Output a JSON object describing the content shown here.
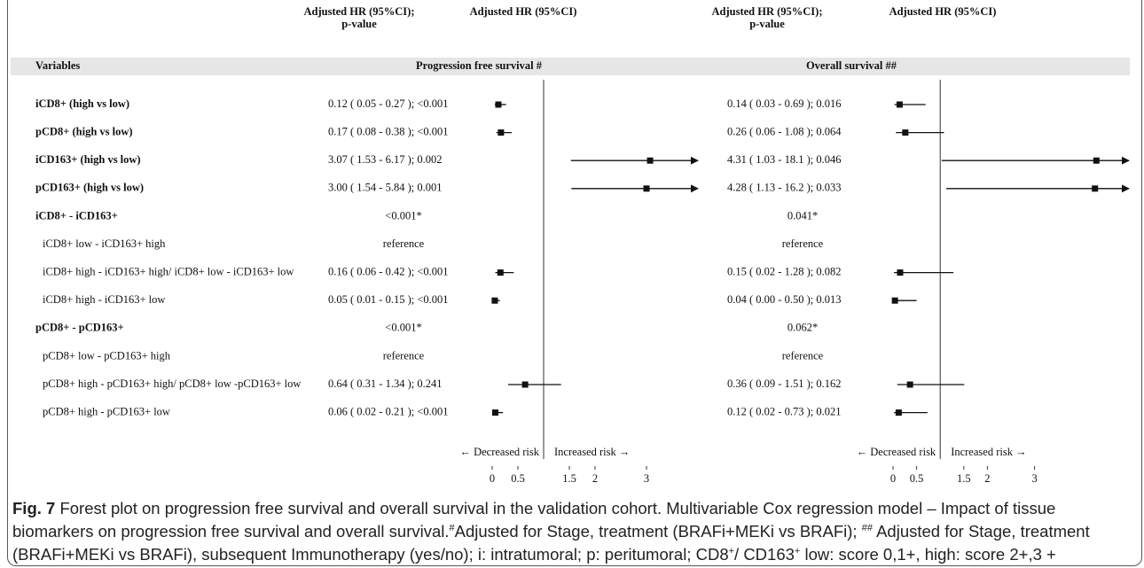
{
  "figure": {
    "variables_header": "Variables",
    "variables": [
      {
        "label": "iCD8+ (high vs low)",
        "bold": true
      },
      {
        "label": "pCD8+ (high vs low)",
        "bold": true
      },
      {
        "label": "iCD163+ (high vs low)",
        "bold": true
      },
      {
        "label": "pCD163+ (high vs low)",
        "bold": true
      },
      {
        "label": "iCD8+ - iCD163+",
        "bold": true
      },
      {
        "label": "iCD8+ low - iCD163+ high",
        "bold": false
      },
      {
        "label": "iCD8+ high - iCD163+ high/ iCD8+ low - iCD163+ low",
        "bold": false
      },
      {
        "label": "iCD8+ high - iCD163+ low",
        "bold": false
      },
      {
        "label": "pCD8+ - pCD163+",
        "bold": true
      },
      {
        "label": "pCD8+ low - pCD163+ high",
        "bold": false
      },
      {
        "label": "pCD8+ high - pCD163+ high/ pCD8+ low -pCD163+ low",
        "bold": false
      },
      {
        "label": "pCD8+ high - pCD163+ low",
        "bold": false
      }
    ],
    "panels": [
      {
        "title": "Progression free survival #",
        "head_ci_p": [
          "Adjusted HR (95%CI);",
          "p-value"
        ],
        "head_ci": "Adjusted HR (95%CI)",
        "decreased": "← Decreased risk",
        "increased": "Increased risk →",
        "xlim": [
          0,
          4
        ],
        "xticks": [
          0,
          0.5,
          1.5,
          2,
          3
        ],
        "reference_line": 1,
        "rows": [
          {
            "text": "0.12 ( 0.05 - 0.27 ); <0.001",
            "hr": 0.12,
            "ci": [
              0.05,
              0.27
            ]
          },
          {
            "text": "0.17 ( 0.08 - 0.38 ); <0.001",
            "hr": 0.17,
            "ci": [
              0.08,
              0.38
            ]
          },
          {
            "text": "3.07 ( 1.53 - 6.17 ); 0.002",
            "hr": 3.07,
            "ci": [
              1.53,
              6.17
            ]
          },
          {
            "text": "3.00 ( 1.54 - 5.84 ); 0.001",
            "hr": 3.0,
            "ci": [
              1.54,
              5.84
            ]
          },
          {
            "text": "<0.001*"
          },
          {
            "text": "reference"
          },
          {
            "text": "0.16 ( 0.06 - 0.42 ); <0.001",
            "hr": 0.16,
            "ci": [
              0.06,
              0.42
            ]
          },
          {
            "text": "0.05 ( 0.01 - 0.15 ); <0.001",
            "hr": 0.05,
            "ci": [
              0.01,
              0.15
            ]
          },
          {
            "text": "<0.001*"
          },
          {
            "text": "reference"
          },
          {
            "text": "0.64 ( 0.31 - 1.34 ); 0.241",
            "hr": 0.64,
            "ci": [
              0.31,
              1.34
            ]
          },
          {
            "text": "0.06 ( 0.02 - 0.21 ); <0.001",
            "hr": 0.06,
            "ci": [
              0.02,
              0.21
            ]
          }
        ]
      },
      {
        "title": "Overall survival ##",
        "head_ci_p": [
          "Adjusted HR (95%CI);",
          "p-value"
        ],
        "head_ci": "Adjusted HR (95%CI)",
        "decreased": "← Decreased risk",
        "increased": "Increased risk →",
        "xlim": [
          0,
          5
        ],
        "xticks": [
          0,
          0.5,
          1.5,
          2,
          3
        ],
        "reference_line": 1,
        "rows": [
          {
            "text": "0.14 ( 0.03 - 0.69 ); 0.016",
            "hr": 0.14,
            "ci": [
              0.03,
              0.69
            ]
          },
          {
            "text": "0.26 ( 0.06 - 1.08 ); 0.064",
            "hr": 0.26,
            "ci": [
              0.06,
              1.08
            ]
          },
          {
            "text": "4.31 ( 1.03 - 18.1 ); 0.046",
            "hr": 4.31,
            "ci": [
              1.03,
              18.1
            ]
          },
          {
            "text": "4.28 ( 1.13 - 16.2 ); 0.033",
            "hr": 4.28,
            "ci": [
              1.13,
              16.2
            ]
          },
          {
            "text": "0.041*"
          },
          {
            "text": "reference"
          },
          {
            "text": "0.15 ( 0.02 - 1.28 ); 0.082",
            "hr": 0.15,
            "ci": [
              0.02,
              1.28
            ]
          },
          {
            "text": "0.04 ( 0.00 - 0.50 ); 0.013",
            "hr": 0.04,
            "ci": [
              0.0,
              0.5
            ]
          },
          {
            "text": "0.062*"
          },
          {
            "text": "reference"
          },
          {
            "text": "0.36 ( 0.09 - 1.51 ); 0.162",
            "hr": 0.36,
            "ci": [
              0.09,
              1.51
            ]
          },
          {
            "text": "0.12 ( 0.02 - 0.73 ); 0.021",
            "hr": 0.12,
            "ci": [
              0.02,
              0.73
            ]
          }
        ]
      }
    ],
    "caption": {
      "label": "Fig. 7",
      "parts": [
        " Forest plot on progression free survival and overall survival in the validation cohort. Multivariable Cox regression model – Impact of tissue biomarkers on progression free survival and overall survival.",
        "#",
        "Adjusted for Stage, treatment (BRAFi+MEKi vs BRAFi); ",
        "##",
        " Adjusted for Stage, treatment (BRAFi+MEKi vs BRAFi), subsequent Immunotherapy (yes/no); i: intratumoral; p: peritumoral; CD8",
        "+",
        "/ CD163",
        "+",
        " low: score 0,1+, high: score 2+,3 +"
      ]
    }
  }
}
